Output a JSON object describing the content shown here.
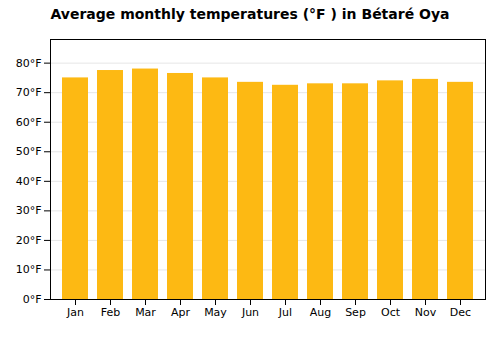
{
  "chart_data": {
    "type": "bar",
    "title": "Average monthly temperatures (°F ) in Bétaré Oya",
    "categories": [
      "Jan",
      "Feb",
      "Mar",
      "Apr",
      "May",
      "Jun",
      "Jul",
      "Aug",
      "Sep",
      "Oct",
      "Nov",
      "Dec"
    ],
    "values": [
      75.0,
      77.5,
      78.0,
      76.5,
      75.0,
      73.5,
      72.5,
      73.0,
      73.0,
      74.0,
      74.5,
      73.5
    ],
    "color": "#FDB913",
    "ylim": [
      0,
      88
    ],
    "yticks": [
      {
        "value": 0,
        "label": "0°F"
      },
      {
        "value": 10,
        "label": "10°F"
      },
      {
        "value": 20,
        "label": "20°F"
      },
      {
        "value": 30,
        "label": "30°F"
      },
      {
        "value": 40,
        "label": "40°F"
      },
      {
        "value": 50,
        "label": "50°F"
      },
      {
        "value": 60,
        "label": "60°F"
      },
      {
        "value": 70,
        "label": "70°F"
      },
      {
        "value": 80,
        "label": "80°F"
      }
    ],
    "grid": true
  }
}
